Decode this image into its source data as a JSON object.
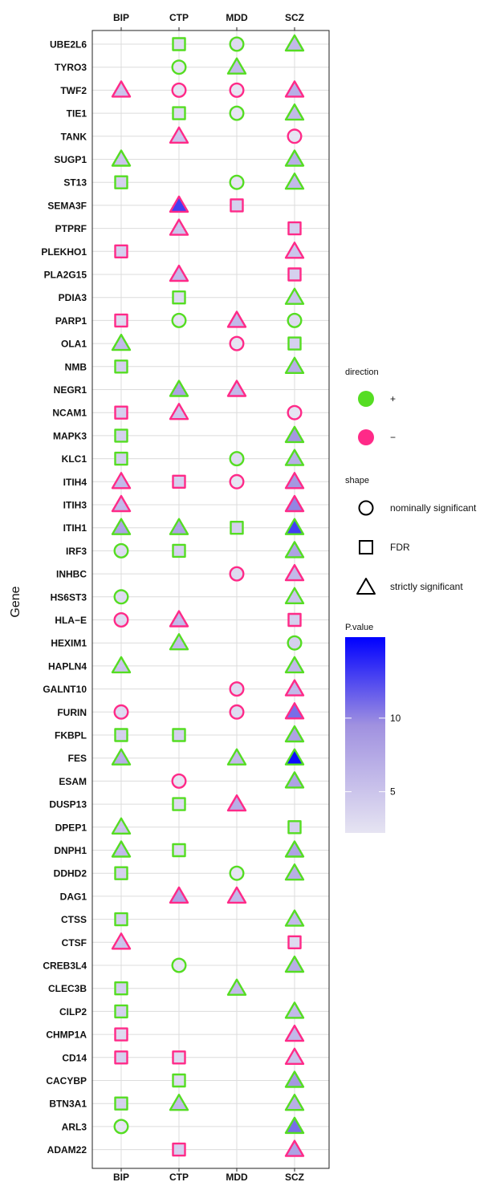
{
  "chart_data": {
    "type": "scatter",
    "title": "",
    "xlabel": "",
    "ylabel": "Gene",
    "columns": [
      "BIP",
      "CTP",
      "MDD",
      "SCZ"
    ],
    "genes": [
      "UBE2L6",
      "TYRO3",
      "TWF2",
      "TIE1",
      "TANK",
      "SUGP1",
      "ST13",
      "SEMA3F",
      "PTPRF",
      "PLEKHO1",
      "PLA2G15",
      "PDIA3",
      "PARP1",
      "OLA1",
      "NMB",
      "NEGR1",
      "NCAM1",
      "MAPK3",
      "KLC1",
      "ITIH4",
      "ITIH3",
      "ITIH1",
      "IRF3",
      "INHBC",
      "HS6ST3",
      "HLA−E",
      "HEXIM1",
      "HAPLN4",
      "GALNT10",
      "FURIN",
      "FKBPL",
      "FES",
      "ESAM",
      "DUSP13",
      "DPEP1",
      "DNPH1",
      "DDHD2",
      "DAG1",
      "CTSS",
      "CTSF",
      "CREB3L4",
      "CLEC3B",
      "CILP2",
      "CHMP1A",
      "CD14",
      "CACYBP",
      "BTN3A1",
      "ARL3",
      "ADAM22"
    ],
    "points": [
      {
        "gene": "UBE2L6",
        "col": "CTP",
        "dir": "+",
        "shape": "FDR",
        "p": 3
      },
      {
        "gene": "UBE2L6",
        "col": "MDD",
        "dir": "+",
        "shape": "nominally significant",
        "p": 3
      },
      {
        "gene": "UBE2L6",
        "col": "SCZ",
        "dir": "+",
        "shape": "strictly significant",
        "p": 6
      },
      {
        "gene": "TYRO3",
        "col": "CTP",
        "dir": "+",
        "shape": "nominally significant",
        "p": 2
      },
      {
        "gene": "TYRO3",
        "col": "MDD",
        "dir": "+",
        "shape": "strictly significant",
        "p": 6
      },
      {
        "gene": "TWF2",
        "col": "BIP",
        "dir": "−",
        "shape": "strictly significant",
        "p": 5
      },
      {
        "gene": "TWF2",
        "col": "CTP",
        "dir": "−",
        "shape": "nominally significant",
        "p": 2
      },
      {
        "gene": "TWF2",
        "col": "MDD",
        "dir": "−",
        "shape": "nominally significant",
        "p": 2
      },
      {
        "gene": "TWF2",
        "col": "SCZ",
        "dir": "−",
        "shape": "strictly significant",
        "p": 7
      },
      {
        "gene": "TIE1",
        "col": "CTP",
        "dir": "+",
        "shape": "FDR",
        "p": 3
      },
      {
        "gene": "TIE1",
        "col": "MDD",
        "dir": "+",
        "shape": "nominally significant",
        "p": 2
      },
      {
        "gene": "TIE1",
        "col": "SCZ",
        "dir": "+",
        "shape": "strictly significant",
        "p": 6
      },
      {
        "gene": "TANK",
        "col": "CTP",
        "dir": "−",
        "shape": "strictly significant",
        "p": 5
      },
      {
        "gene": "TANK",
        "col": "SCZ",
        "dir": "−",
        "shape": "nominally significant",
        "p": 2
      },
      {
        "gene": "SUGP1",
        "col": "BIP",
        "dir": "+",
        "shape": "strictly significant",
        "p": 5
      },
      {
        "gene": "SUGP1",
        "col": "SCZ",
        "dir": "+",
        "shape": "strictly significant",
        "p": 7
      },
      {
        "gene": "ST13",
        "col": "BIP",
        "dir": "+",
        "shape": "FDR",
        "p": 4
      },
      {
        "gene": "ST13",
        "col": "MDD",
        "dir": "+",
        "shape": "nominally significant",
        "p": 2
      },
      {
        "gene": "ST13",
        "col": "SCZ",
        "dir": "+",
        "shape": "strictly significant",
        "p": 6
      },
      {
        "gene": "SEMA3F",
        "col": "CTP",
        "dir": "−",
        "shape": "strictly significant",
        "p": 13
      },
      {
        "gene": "SEMA3F",
        "col": "MDD",
        "dir": "−",
        "shape": "FDR",
        "p": 4
      },
      {
        "gene": "PTPRF",
        "col": "CTP",
        "dir": "−",
        "shape": "strictly significant",
        "p": 5
      },
      {
        "gene": "PTPRF",
        "col": "SCZ",
        "dir": "−",
        "shape": "FDR",
        "p": 4
      },
      {
        "gene": "PLEKHO1",
        "col": "BIP",
        "dir": "−",
        "shape": "FDR",
        "p": 4
      },
      {
        "gene": "PLEKHO1",
        "col": "SCZ",
        "dir": "−",
        "shape": "strictly significant",
        "p": 5
      },
      {
        "gene": "PLA2G15",
        "col": "CTP",
        "dir": "−",
        "shape": "strictly significant",
        "p": 6
      },
      {
        "gene": "PLA2G15",
        "col": "SCZ",
        "dir": "−",
        "shape": "FDR",
        "p": 4
      },
      {
        "gene": "PDIA3",
        "col": "CTP",
        "dir": "+",
        "shape": "FDR",
        "p": 3
      },
      {
        "gene": "PDIA3",
        "col": "SCZ",
        "dir": "+",
        "shape": "strictly significant",
        "p": 5
      },
      {
        "gene": "PARP1",
        "col": "BIP",
        "dir": "−",
        "shape": "FDR",
        "p": 3
      },
      {
        "gene": "PARP1",
        "col": "CTP",
        "dir": "+",
        "shape": "nominally significant",
        "p": 2
      },
      {
        "gene": "PARP1",
        "col": "MDD",
        "dir": "−",
        "shape": "strictly significant",
        "p": 6
      },
      {
        "gene": "PARP1",
        "col": "SCZ",
        "dir": "+",
        "shape": "nominally significant",
        "p": 3
      },
      {
        "gene": "OLA1",
        "col": "BIP",
        "dir": "+",
        "shape": "strictly significant",
        "p": 6
      },
      {
        "gene": "OLA1",
        "col": "MDD",
        "dir": "−",
        "shape": "nominally significant",
        "p": 2
      },
      {
        "gene": "OLA1",
        "col": "SCZ",
        "dir": "+",
        "shape": "FDR",
        "p": 4
      },
      {
        "gene": "NMB",
        "col": "BIP",
        "dir": "+",
        "shape": "FDR",
        "p": 4
      },
      {
        "gene": "NMB",
        "col": "SCZ",
        "dir": "+",
        "shape": "strictly significant",
        "p": 7
      },
      {
        "gene": "NEGR1",
        "col": "CTP",
        "dir": "+",
        "shape": "strictly significant",
        "p": 8
      },
      {
        "gene": "NEGR1",
        "col": "MDD",
        "dir": "−",
        "shape": "strictly significant",
        "p": 6
      },
      {
        "gene": "NCAM1",
        "col": "BIP",
        "dir": "−",
        "shape": "FDR",
        "p": 4
      },
      {
        "gene": "NCAM1",
        "col": "CTP",
        "dir": "−",
        "shape": "strictly significant",
        "p": 5
      },
      {
        "gene": "NCAM1",
        "col": "SCZ",
        "dir": "−",
        "shape": "nominally significant",
        "p": 2
      },
      {
        "gene": "MAPK3",
        "col": "BIP",
        "dir": "+",
        "shape": "FDR",
        "p": 4
      },
      {
        "gene": "MAPK3",
        "col": "SCZ",
        "dir": "+",
        "shape": "strictly significant",
        "p": 9
      },
      {
        "gene": "KLC1",
        "col": "BIP",
        "dir": "+",
        "shape": "FDR",
        "p": 4
      },
      {
        "gene": "KLC1",
        "col": "MDD",
        "dir": "+",
        "shape": "nominally significant",
        "p": 3
      },
      {
        "gene": "KLC1",
        "col": "SCZ",
        "dir": "+",
        "shape": "strictly significant",
        "p": 7
      },
      {
        "gene": "ITIH4",
        "col": "BIP",
        "dir": "−",
        "shape": "strictly significant",
        "p": 6
      },
      {
        "gene": "ITIH4",
        "col": "CTP",
        "dir": "−",
        "shape": "FDR",
        "p": 4
      },
      {
        "gene": "ITIH4",
        "col": "MDD",
        "dir": "−",
        "shape": "nominally significant",
        "p": 2
      },
      {
        "gene": "ITIH4",
        "col": "SCZ",
        "dir": "−",
        "shape": "strictly significant",
        "p": 9
      },
      {
        "gene": "ITIH3",
        "col": "BIP",
        "dir": "−",
        "shape": "strictly significant",
        "p": 6
      },
      {
        "gene": "ITIH3",
        "col": "SCZ",
        "dir": "−",
        "shape": "strictly significant",
        "p": 10
      },
      {
        "gene": "ITIH1",
        "col": "BIP",
        "dir": "+",
        "shape": "strictly significant",
        "p": 8
      },
      {
        "gene": "ITIH1",
        "col": "CTP",
        "dir": "+",
        "shape": "strictly significant",
        "p": 8
      },
      {
        "gene": "ITIH1",
        "col": "MDD",
        "dir": "+",
        "shape": "FDR",
        "p": 4
      },
      {
        "gene": "ITIH1",
        "col": "SCZ",
        "dir": "+",
        "shape": "strictly significant",
        "p": 13
      },
      {
        "gene": "IRF3",
        "col": "BIP",
        "dir": "+",
        "shape": "nominally significant",
        "p": 3
      },
      {
        "gene": "IRF3",
        "col": "CTP",
        "dir": "+",
        "shape": "FDR",
        "p": 4
      },
      {
        "gene": "IRF3",
        "col": "SCZ",
        "dir": "+",
        "shape": "strictly significant",
        "p": 8
      },
      {
        "gene": "INHBC",
        "col": "MDD",
        "dir": "−",
        "shape": "nominally significant",
        "p": 3
      },
      {
        "gene": "INHBC",
        "col": "SCZ",
        "dir": "−",
        "shape": "strictly significant",
        "p": 6
      },
      {
        "gene": "HS6ST3",
        "col": "BIP",
        "dir": "+",
        "shape": "nominally significant",
        "p": 3
      },
      {
        "gene": "HS6ST3",
        "col": "SCZ",
        "dir": "+",
        "shape": "strictly significant",
        "p": 5
      },
      {
        "gene": "HLA−E",
        "col": "BIP",
        "dir": "−",
        "shape": "nominally significant",
        "p": 3
      },
      {
        "gene": "HLA−E",
        "col": "CTP",
        "dir": "−",
        "shape": "strictly significant",
        "p": 6
      },
      {
        "gene": "HLA−E",
        "col": "SCZ",
        "dir": "−",
        "shape": "FDR",
        "p": 4
      },
      {
        "gene": "HEXIM1",
        "col": "CTP",
        "dir": "+",
        "shape": "strictly significant",
        "p": 6
      },
      {
        "gene": "HEXIM1",
        "col": "SCZ",
        "dir": "+",
        "shape": "nominally significant",
        "p": 4
      },
      {
        "gene": "HAPLN4",
        "col": "BIP",
        "dir": "+",
        "shape": "strictly significant",
        "p": 5
      },
      {
        "gene": "HAPLN4",
        "col": "SCZ",
        "dir": "+",
        "shape": "strictly significant",
        "p": 6
      },
      {
        "gene": "GALNT10",
        "col": "MDD",
        "dir": "−",
        "shape": "nominally significant",
        "p": 3
      },
      {
        "gene": "GALNT10",
        "col": "SCZ",
        "dir": "−",
        "shape": "strictly significant",
        "p": 6
      },
      {
        "gene": "FURIN",
        "col": "BIP",
        "dir": "−",
        "shape": "nominally significant",
        "p": 3
      },
      {
        "gene": "FURIN",
        "col": "MDD",
        "dir": "−",
        "shape": "nominally significant",
        "p": 3
      },
      {
        "gene": "FURIN",
        "col": "SCZ",
        "dir": "−",
        "shape": "strictly significant",
        "p": 11
      },
      {
        "gene": "FKBPL",
        "col": "BIP",
        "dir": "+",
        "shape": "FDR",
        "p": 4
      },
      {
        "gene": "FKBPL",
        "col": "CTP",
        "dir": "+",
        "shape": "FDR",
        "p": 4
      },
      {
        "gene": "FKBPL",
        "col": "SCZ",
        "dir": "+",
        "shape": "strictly significant",
        "p": 8
      },
      {
        "gene": "FES",
        "col": "BIP",
        "dir": "+",
        "shape": "strictly significant",
        "p": 7
      },
      {
        "gene": "FES",
        "col": "MDD",
        "dir": "+",
        "shape": "strictly significant",
        "p": 6
      },
      {
        "gene": "FES",
        "col": "SCZ",
        "dir": "+",
        "shape": "strictly significant",
        "p": 15
      },
      {
        "gene": "ESAM",
        "col": "CTP",
        "dir": "−",
        "shape": "nominally significant",
        "p": 2
      },
      {
        "gene": "ESAM",
        "col": "SCZ",
        "dir": "+",
        "shape": "strictly significant",
        "p": 8
      },
      {
        "gene": "DUSP13",
        "col": "CTP",
        "dir": "+",
        "shape": "FDR",
        "p": 3
      },
      {
        "gene": "DUSP13",
        "col": "MDD",
        "dir": "−",
        "shape": "strictly significant",
        "p": 7
      },
      {
        "gene": "DPEP1",
        "col": "BIP",
        "dir": "+",
        "shape": "strictly significant",
        "p": 5
      },
      {
        "gene": "DPEP1",
        "col": "SCZ",
        "dir": "+",
        "shape": "FDR",
        "p": 4
      },
      {
        "gene": "DNPH1",
        "col": "BIP",
        "dir": "+",
        "shape": "strictly significant",
        "p": 6
      },
      {
        "gene": "DNPH1",
        "col": "CTP",
        "dir": "+",
        "shape": "FDR",
        "p": 3
      },
      {
        "gene": "DNPH1",
        "col": "SCZ",
        "dir": "+",
        "shape": "strictly significant",
        "p": 8
      },
      {
        "gene": "DDHD2",
        "col": "BIP",
        "dir": "+",
        "shape": "FDR",
        "p": 4
      },
      {
        "gene": "DDHD2",
        "col": "MDD",
        "dir": "+",
        "shape": "nominally significant",
        "p": 2
      },
      {
        "gene": "DDHD2",
        "col": "SCZ",
        "dir": "+",
        "shape": "strictly significant",
        "p": 7
      },
      {
        "gene": "DAG1",
        "col": "CTP",
        "dir": "−",
        "shape": "strictly significant",
        "p": 8
      },
      {
        "gene": "DAG1",
        "col": "MDD",
        "dir": "−",
        "shape": "strictly significant",
        "p": 6
      },
      {
        "gene": "CTSS",
        "col": "BIP",
        "dir": "+",
        "shape": "FDR",
        "p": 4
      },
      {
        "gene": "CTSS",
        "col": "SCZ",
        "dir": "+",
        "shape": "strictly significant",
        "p": 6
      },
      {
        "gene": "CTSF",
        "col": "BIP",
        "dir": "−",
        "shape": "strictly significant",
        "p": 5
      },
      {
        "gene": "CTSF",
        "col": "SCZ",
        "dir": "−",
        "shape": "FDR",
        "p": 3
      },
      {
        "gene": "CREB3L4",
        "col": "CTP",
        "dir": "+",
        "shape": "nominally significant",
        "p": 2
      },
      {
        "gene": "CREB3L4",
        "col": "SCZ",
        "dir": "+",
        "shape": "strictly significant",
        "p": 7
      },
      {
        "gene": "CLEC3B",
        "col": "BIP",
        "dir": "+",
        "shape": "FDR",
        "p": 4
      },
      {
        "gene": "CLEC3B",
        "col": "MDD",
        "dir": "+",
        "shape": "strictly significant",
        "p": 6
      },
      {
        "gene": "CILP2",
        "col": "BIP",
        "dir": "+",
        "shape": "FDR",
        "p": 4
      },
      {
        "gene": "CILP2",
        "col": "SCZ",
        "dir": "+",
        "shape": "strictly significant",
        "p": 6
      },
      {
        "gene": "CHMP1A",
        "col": "BIP",
        "dir": "−",
        "shape": "FDR",
        "p": 3
      },
      {
        "gene": "CHMP1A",
        "col": "SCZ",
        "dir": "−",
        "shape": "strictly significant",
        "p": 6
      },
      {
        "gene": "CD14",
        "col": "BIP",
        "dir": "−",
        "shape": "FDR",
        "p": 4
      },
      {
        "gene": "CD14",
        "col": "CTP",
        "dir": "−",
        "shape": "FDR",
        "p": 3
      },
      {
        "gene": "CD14",
        "col": "SCZ",
        "dir": "−",
        "shape": "strictly significant",
        "p": 5
      },
      {
        "gene": "CACYBP",
        "col": "CTP",
        "dir": "+",
        "shape": "FDR",
        "p": 3
      },
      {
        "gene": "CACYBP",
        "col": "SCZ",
        "dir": "+",
        "shape": "strictly significant",
        "p": 9
      },
      {
        "gene": "BTN3A1",
        "col": "BIP",
        "dir": "+",
        "shape": "FDR",
        "p": 4
      },
      {
        "gene": "BTN3A1",
        "col": "CTP",
        "dir": "+",
        "shape": "strictly significant",
        "p": 6
      },
      {
        "gene": "BTN3A1",
        "col": "SCZ",
        "dir": "+",
        "shape": "strictly significant",
        "p": 7
      },
      {
        "gene": "ARL3",
        "col": "BIP",
        "dir": "+",
        "shape": "nominally significant",
        "p": 2
      },
      {
        "gene": "ARL3",
        "col": "SCZ",
        "dir": "+",
        "shape": "strictly significant",
        "p": 11
      },
      {
        "gene": "ADAM22",
        "col": "CTP",
        "dir": "−",
        "shape": "FDR",
        "p": 4
      },
      {
        "gene": "ADAM22",
        "col": "SCZ",
        "dir": "−",
        "shape": "strictly significant",
        "p": 8
      }
    ],
    "legend": {
      "placement": "right",
      "direction": {
        "title": "direction",
        "items": [
          {
            "label": "+",
            "color": "#55dd22"
          },
          {
            "label": "−",
            "color": "#ff2a88"
          }
        ]
      },
      "shape": {
        "title": "shape",
        "items": [
          {
            "label": "nominally significant",
            "shape": "circle"
          },
          {
            "label": "FDR",
            "shape": "square"
          },
          {
            "label": "strictly significant",
            "shape": "triangle"
          }
        ]
      },
      "colorbar": {
        "title": "P.value",
        "range": [
          2.2,
          15.5
        ],
        "ticks": [
          5,
          10
        ],
        "low_color": "#e6e4f2",
        "mid_color": "#a091e0",
        "high_color": "#0000ff"
      }
    },
    "grid": true,
    "colors": {
      "plus": "#55dd22",
      "minus": "#ff2a88"
    }
  }
}
